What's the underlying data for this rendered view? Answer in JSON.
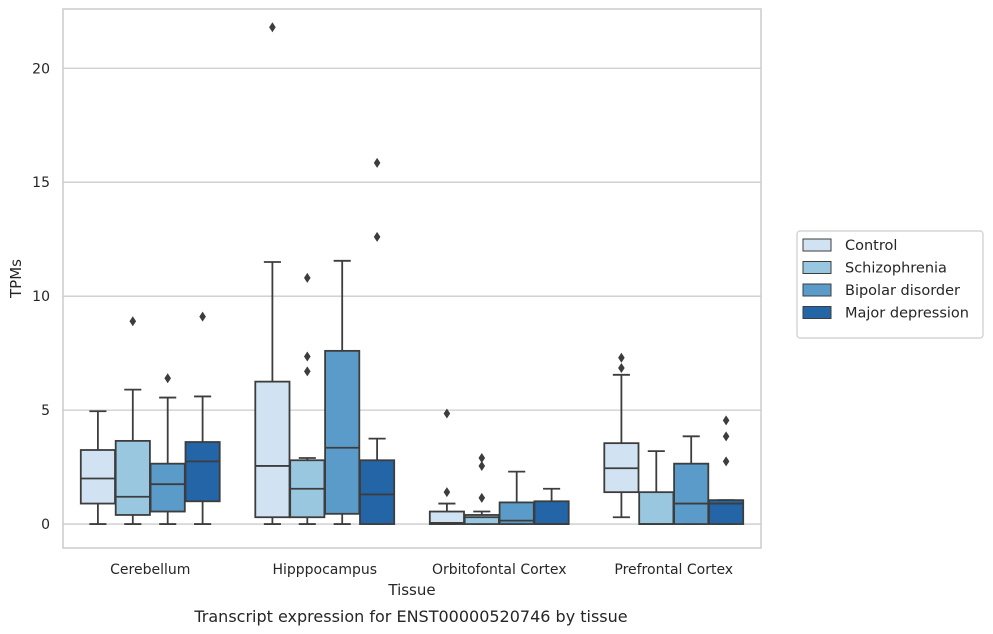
{
  "caption": "Transcript expression for ENST00000520746 by tissue",
  "chart_data": {
    "type": "box",
    "xlabel": "Tissue",
    "ylabel": "TPMs",
    "ylim": [
      -1.05,
      22.6
    ],
    "yticks": [
      0,
      5,
      10,
      15,
      20
    ],
    "grid": "horizontal",
    "legend_position": "right",
    "categories": [
      "Cerebellum",
      "Hipppocampus",
      "Orbitofontal Cortex",
      "Prefrontal Cortex"
    ],
    "series": [
      {
        "name": "Control",
        "color": "#d1e3f2",
        "boxes": [
          {
            "min": 0,
            "q1": 0.9,
            "median": 2.0,
            "q3": 3.25,
            "max": 4.95,
            "outliers": []
          },
          {
            "min": 0,
            "q1": 0.3,
            "median": 2.55,
            "q3": 6.25,
            "max": 11.5,
            "outliers": [
              21.8
            ]
          },
          {
            "min": 0,
            "q1": 0,
            "median": 0.05,
            "q3": 0.55,
            "max": 0.9,
            "outliers": [
              1.4,
              4.85
            ]
          },
          {
            "min": 0.3,
            "q1": 1.4,
            "median": 2.45,
            "q3": 3.55,
            "max": 6.55,
            "outliers": [
              6.85,
              7.3
            ]
          }
        ]
      },
      {
        "name": "Schizophrenia",
        "color": "#9ac7e0",
        "boxes": [
          {
            "min": 0,
            "q1": 0.4,
            "median": 1.2,
            "q3": 3.65,
            "max": 5.9,
            "outliers": [
              8.9
            ]
          },
          {
            "min": 0,
            "q1": 0.3,
            "median": 1.55,
            "q3": 2.8,
            "max": 2.9,
            "outliers": [
              6.7,
              7.35,
              10.8
            ]
          },
          {
            "min": 0,
            "q1": 0,
            "median": 0.3,
            "q3": 0.4,
            "max": 0.55,
            "outliers": [
              1.15,
              2.55,
              2.9
            ]
          },
          {
            "min": 0,
            "q1": 0,
            "median": 0,
            "q3": 1.4,
            "max": 3.2,
            "outliers": []
          }
        ]
      },
      {
        "name": "Bipolar disorder",
        "color": "#5a9bc9",
        "boxes": [
          {
            "min": 0,
            "q1": 0.55,
            "median": 1.75,
            "q3": 2.65,
            "max": 5.55,
            "outliers": [
              6.4
            ]
          },
          {
            "min": 0,
            "q1": 0.45,
            "median": 3.35,
            "q3": 7.6,
            "max": 11.55,
            "outliers": []
          },
          {
            "min": 0,
            "q1": 0,
            "median": 0.15,
            "q3": 0.95,
            "max": 2.3,
            "outliers": []
          },
          {
            "min": 0,
            "q1": 0,
            "median": 0.9,
            "q3": 2.65,
            "max": 3.85,
            "outliers": []
          }
        ]
      },
      {
        "name": "Major depression",
        "color": "#2465a8",
        "boxes": [
          {
            "min": 0,
            "q1": 1.0,
            "median": 2.75,
            "q3": 3.6,
            "max": 5.6,
            "outliers": [
              9.1
            ]
          },
          {
            "min": 0,
            "q1": 0,
            "median": 1.3,
            "q3": 2.8,
            "max": 3.75,
            "outliers": [
              12.6,
              15.85
            ]
          },
          {
            "min": 0,
            "q1": 0,
            "median": 0,
            "q3": 1.0,
            "max": 1.55,
            "outliers": []
          },
          {
            "min": 0,
            "q1": 0,
            "median": 0.9,
            "q3": 1.05,
            "max": 1.05,
            "outliers": [
              2.75,
              3.85,
              4.55
            ]
          }
        ]
      }
    ]
  }
}
